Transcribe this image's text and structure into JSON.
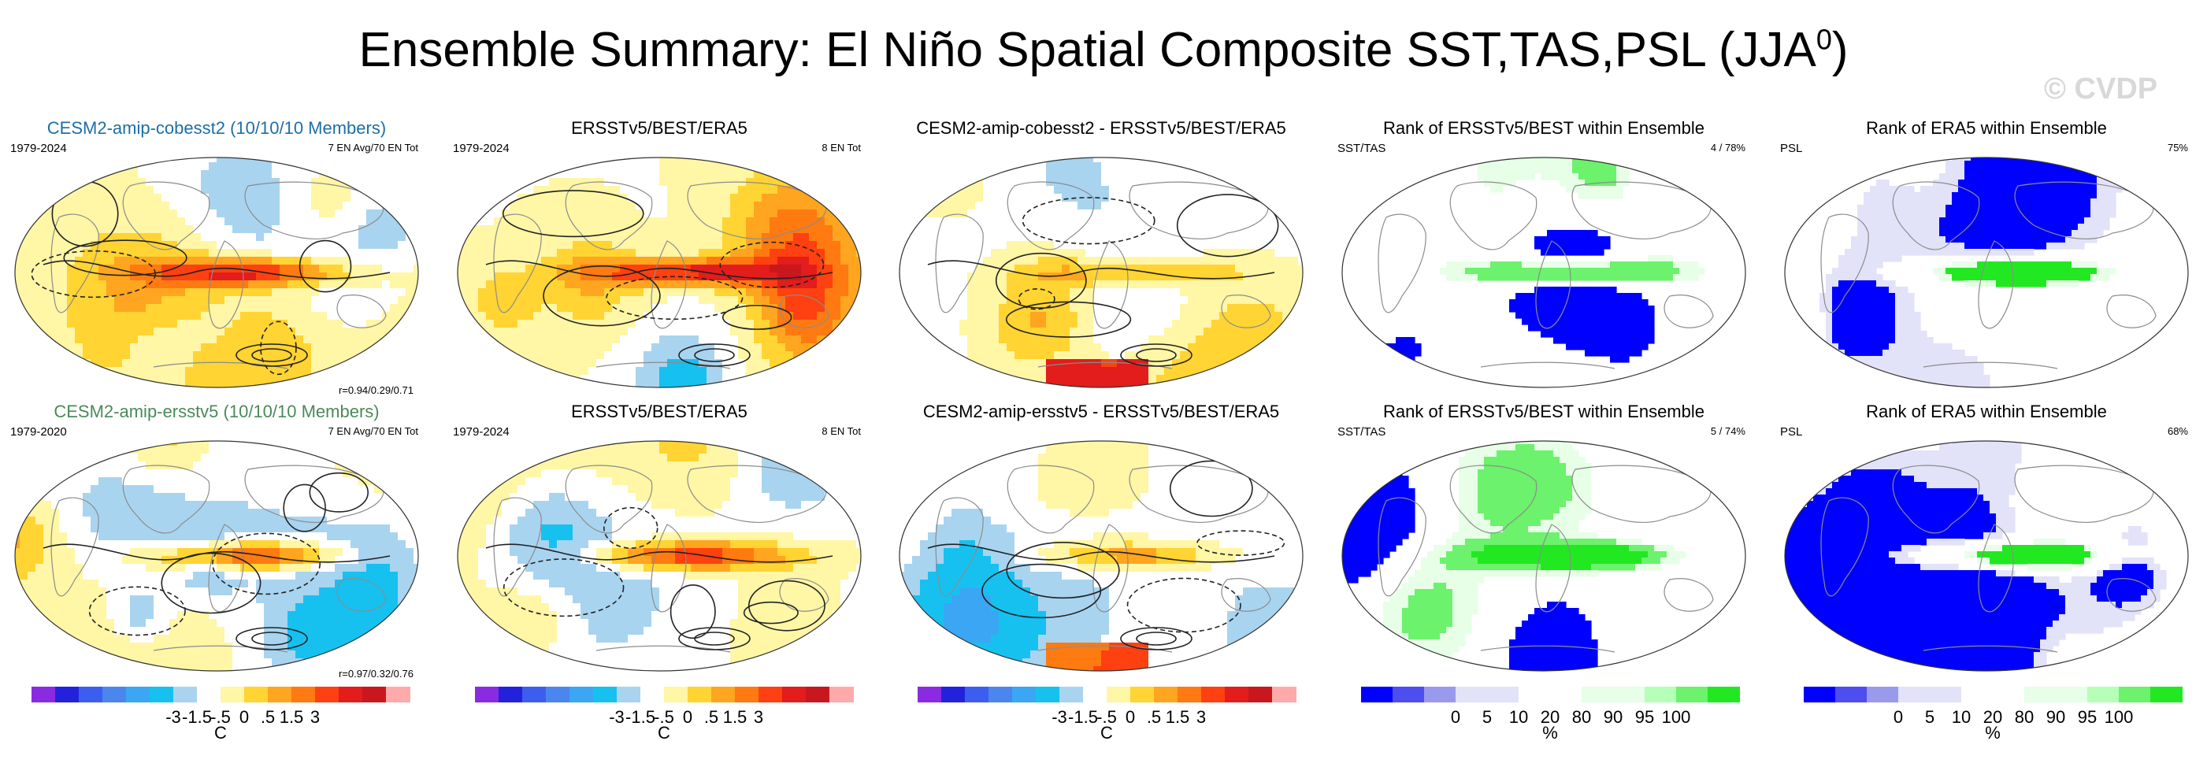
{
  "title": {
    "main": "Ensemble Summary: El Niño Spatial Composite SST,TAS,PSL (JJA",
    "sup": "0",
    "close": ")"
  },
  "watermark": "© CVDP",
  "rows": [
    {
      "panels": [
        {
          "title": "CESM2-amip-cobesst2 (10/10/10 Members)",
          "left_text": "1979-2024",
          "right_text": "7 EN Avg/70 EN Tot",
          "bottom_text": "r=0.94/0.29/0.71"
        },
        {
          "title": "ERSSTv5/BEST/ERA5",
          "left_text": "1979-2024",
          "right_text": "8 EN Tot",
          "bottom_text": ""
        },
        {
          "title": "CESM2-amip-cobesst2 - ERSSTv5/BEST/ERA5",
          "left_text": "",
          "right_text": "",
          "bottom_text": ""
        },
        {
          "title": "Rank of ERSSTv5/BEST within Ensemble",
          "left_text": "SST/TAS",
          "right_text": "4 /  78%",
          "bottom_text": ""
        },
        {
          "title": "Rank of ERA5 within Ensemble",
          "left_text": "PSL",
          "right_text": "75%",
          "bottom_text": ""
        }
      ]
    },
    {
      "panels": [
        {
          "title": "CESM2-amip-ersstv5 (10/10/10 Members)",
          "left_text": "1979-2020",
          "right_text": "7 EN Avg/70 EN Tot",
          "bottom_text": "r=0.97/0.32/0.76"
        },
        {
          "title": "ERSSTv5/BEST/ERA5",
          "left_text": "1979-2024",
          "right_text": "8 EN Tot",
          "bottom_text": ""
        },
        {
          "title": "CESM2-amip-ersstv5 - ERSSTv5/BEST/ERA5",
          "left_text": "",
          "right_text": "",
          "bottom_text": ""
        },
        {
          "title": "Rank of ERSSTv5/BEST within Ensemble",
          "left_text": "SST/TAS",
          "right_text": "5 /  74%",
          "bottom_text": ""
        },
        {
          "title": "Rank of ERA5 within Ensemble",
          "left_text": "PSL",
          "right_text": "68%",
          "bottom_text": ""
        }
      ]
    }
  ],
  "colorbars": {
    "anomaly": {
      "unit": "C",
      "ticks": [
        "-3",
        "-1.5",
        "-.5",
        "0",
        ".5",
        "1.5",
        "3"
      ],
      "colors": [
        "#8a2be2",
        "#2222dd",
        "#3c5ef0",
        "#4a86ee",
        "#3aa6f4",
        "#16c1f0",
        "#a8d4f0",
        "#ffffff",
        "#fff6a6",
        "#ffd433",
        "#ffa51f",
        "#ff7a10",
        "#ff4010",
        "#e31c1c",
        "#c8181e",
        "#ffaaaa"
      ]
    },
    "rank": {
      "unit": "%",
      "ticks": [
        "0",
        "5",
        "10",
        "20",
        "80",
        "90",
        "95",
        "100"
      ],
      "colors": [
        "#0000ff",
        "#4d4df0",
        "#9a9aec",
        "#e2e2f8",
        "#e2e2f8",
        "#ffffff",
        "#ffffff",
        "#e6ffe6",
        "#e6ffe6",
        "#b6ffb6",
        "#6cf26c",
        "#22e822"
      ]
    }
  }
}
